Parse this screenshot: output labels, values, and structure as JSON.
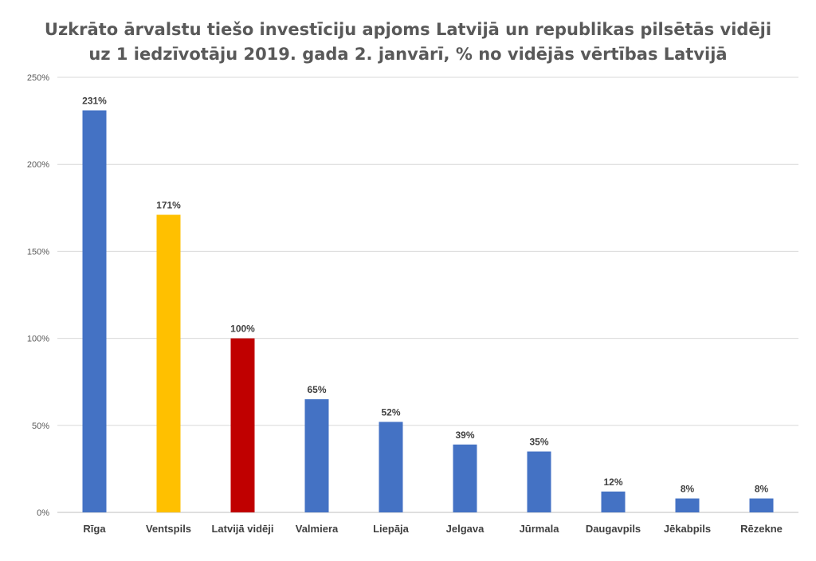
{
  "chart_data": {
    "type": "bar",
    "title": "Uzkrāto ārvalstu tiešo investīciju apjoms Latvijā un republikas pilsētās vidēji uz 1 iedzīvotāju 2019. gada 2. janvārī, % no vidējās vērtības Latvijā",
    "title_lines": [
      "Uzkrāto ārvalstu tiešo investīciju apjoms Latvijā un republikas pilsētās vidēji",
      "uz 1 iedzīvotāju 2019. gada 2. janvārī, % no vidējās vērtības Latvijā"
    ],
    "categories": [
      "Rīga",
      "Ventspils",
      "Latvijā vidēji",
      "Valmiera",
      "Liepāja",
      "Jelgava",
      "Jūrmala",
      "Daugavpils",
      "Jēkabpils",
      "Rēzekne"
    ],
    "values": [
      231,
      171,
      100,
      65,
      52,
      39,
      35,
      12,
      8,
      8
    ],
    "data_labels": [
      "231%",
      "171%",
      "100%",
      "65%",
      "52%",
      "39%",
      "35%",
      "12%",
      "8%",
      "8%"
    ],
    "bar_colors": [
      "#4472C4",
      "#FFC000",
      "#C00000",
      "#4472C4",
      "#4472C4",
      "#4472C4",
      "#4472C4",
      "#4472C4",
      "#4472C4",
      "#4472C4"
    ],
    "ylim": [
      0,
      250
    ],
    "yticks": [
      0,
      50,
      100,
      150,
      200,
      250
    ],
    "ytick_labels": [
      "0%",
      "50%",
      "100%",
      "150%",
      "200%",
      "250%"
    ],
    "xlabel": "",
    "ylabel": "",
    "grid": true,
    "legend": false
  }
}
